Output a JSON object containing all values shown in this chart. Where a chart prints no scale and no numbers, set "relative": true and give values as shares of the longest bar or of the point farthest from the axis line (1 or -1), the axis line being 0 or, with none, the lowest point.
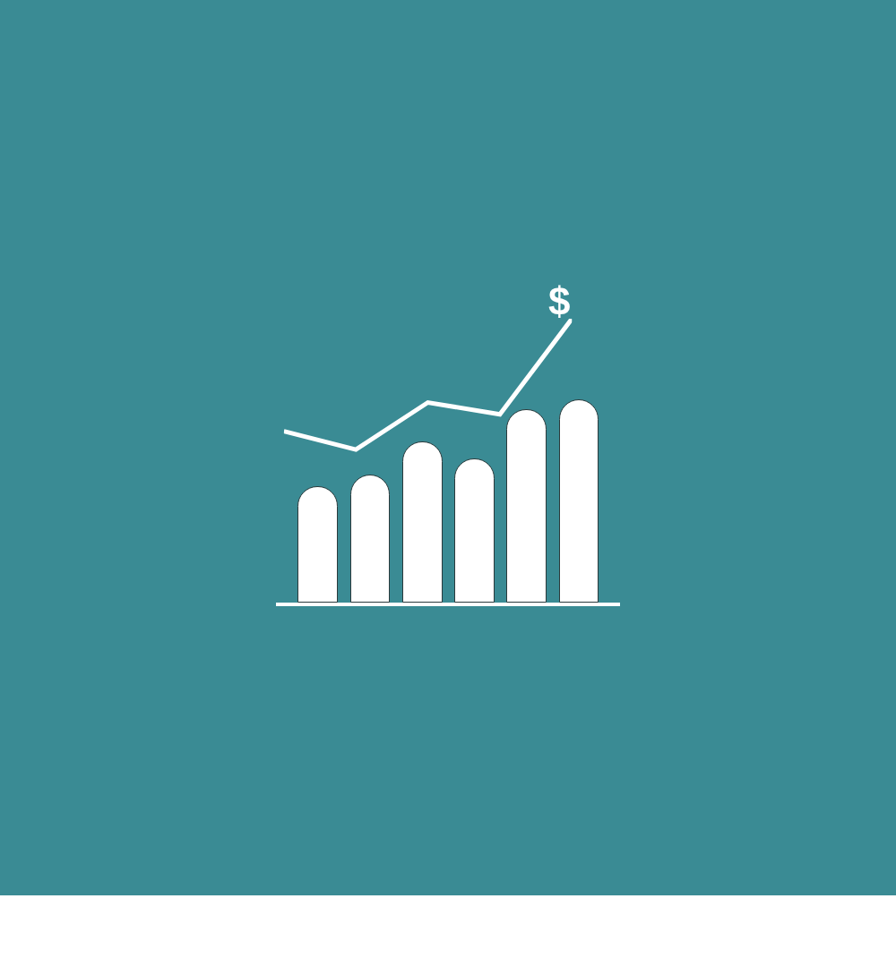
{
  "chart_data": [
    {
      "type": "bar",
      "relative": true,
      "categories": [
        null,
        null,
        null,
        null,
        null,
        null
      ],
      "color": "#ffffff",
      "values": [
        0.57,
        0.63,
        0.79,
        0.71,
        0.95,
        1.0
      ]
    },
    {
      "type": "line",
      "relative": true,
      "categories": [
        null,
        null,
        null,
        null,
        null
      ],
      "color": "#ffffff",
      "values": [
        0.14,
        0.0,
        0.36,
        0.27,
        1.0
      ],
      "line_style": "solid",
      "annotations": [
        "$"
      ]
    }
  ]
}
